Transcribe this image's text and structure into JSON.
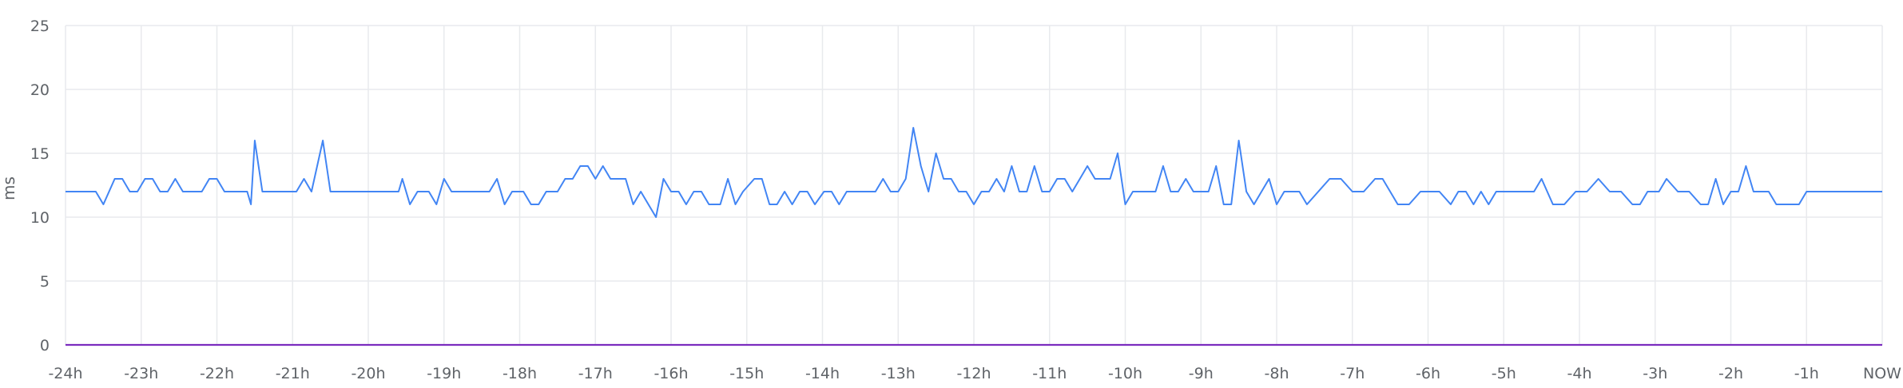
{
  "chart_data": {
    "type": "line",
    "ylabel": "ms",
    "xlabel": "",
    "ylim": [
      0,
      25
    ],
    "xlim": [
      -24,
      0
    ],
    "yticks": [
      "0",
      "5",
      "10",
      "15",
      "20",
      "25"
    ],
    "xticks": [
      {
        "label": "-24h",
        "value": -24
      },
      {
        "label": "-23h",
        "value": -23
      },
      {
        "label": "-22h",
        "value": -22
      },
      {
        "label": "-21h",
        "value": -21
      },
      {
        "label": "-20h",
        "value": -20
      },
      {
        "label": "-19h",
        "value": -19
      },
      {
        "label": "-18h",
        "value": -18
      },
      {
        "label": "-17h",
        "value": -17
      },
      {
        "label": "-16h",
        "value": -16
      },
      {
        "label": "-15h",
        "value": -15
      },
      {
        "label": "-14h",
        "value": -14
      },
      {
        "label": "-13h",
        "value": -13
      },
      {
        "label": "-12h",
        "value": -12
      },
      {
        "label": "-11h",
        "value": -11
      },
      {
        "label": "-10h",
        "value": -10
      },
      {
        "label": "-9h",
        "value": -9
      },
      {
        "label": "-8h",
        "value": -8
      },
      {
        "label": "-7h",
        "value": -7
      },
      {
        "label": "-6h",
        "value": -6
      },
      {
        "label": "-5h",
        "value": -5
      },
      {
        "label": "-4h",
        "value": -4
      },
      {
        "label": "-3h",
        "value": -3
      },
      {
        "label": "-2h",
        "value": -2
      },
      {
        "label": "-1h",
        "value": -1
      },
      {
        "label": "NOW",
        "value": 0
      }
    ],
    "grid": true,
    "series": [
      {
        "color": "#4285f4",
        "points": [
          [
            -24.0,
            12
          ],
          [
            -23.6,
            12
          ],
          [
            -23.5,
            11
          ],
          [
            -23.35,
            13
          ],
          [
            -23.25,
            13
          ],
          [
            -23.15,
            12
          ],
          [
            -23.05,
            12
          ],
          [
            -22.95,
            13
          ],
          [
            -22.85,
            13
          ],
          [
            -22.75,
            12
          ],
          [
            -22.65,
            12
          ],
          [
            -22.55,
            13
          ],
          [
            -22.45,
            12
          ],
          [
            -22.3,
            12
          ],
          [
            -22.2,
            12
          ],
          [
            -22.1,
            13
          ],
          [
            -22.0,
            13
          ],
          [
            -21.9,
            12
          ],
          [
            -21.6,
            12
          ],
          [
            -21.55,
            11
          ],
          [
            -21.5,
            16
          ],
          [
            -21.4,
            12
          ],
          [
            -21.1,
            12
          ],
          [
            -20.95,
            12
          ],
          [
            -20.85,
            13
          ],
          [
            -20.75,
            12
          ],
          [
            -20.6,
            16
          ],
          [
            -20.5,
            12
          ],
          [
            -20.1,
            12
          ],
          [
            -19.6,
            12
          ],
          [
            -19.55,
            13
          ],
          [
            -19.45,
            11
          ],
          [
            -19.35,
            12
          ],
          [
            -19.2,
            12
          ],
          [
            -19.1,
            11
          ],
          [
            -19.0,
            13
          ],
          [
            -18.9,
            12
          ],
          [
            -18.4,
            12
          ],
          [
            -18.3,
            13
          ],
          [
            -18.2,
            11
          ],
          [
            -18.1,
            12
          ],
          [
            -17.95,
            12
          ],
          [
            -17.85,
            11
          ],
          [
            -17.75,
            11
          ],
          [
            -17.65,
            12
          ],
          [
            -17.5,
            12
          ],
          [
            -17.4,
            13
          ],
          [
            -17.3,
            13
          ],
          [
            -17.2,
            14
          ],
          [
            -17.1,
            14
          ],
          [
            -17.0,
            13
          ],
          [
            -16.9,
            14
          ],
          [
            -16.8,
            13
          ],
          [
            -16.6,
            13
          ],
          [
            -16.5,
            11
          ],
          [
            -16.4,
            12
          ],
          [
            -16.2,
            10
          ],
          [
            -16.1,
            13
          ],
          [
            -16.0,
            12
          ],
          [
            -15.9,
            12
          ],
          [
            -15.8,
            11
          ],
          [
            -15.7,
            12
          ],
          [
            -15.6,
            12
          ],
          [
            -15.5,
            11
          ],
          [
            -15.35,
            11
          ],
          [
            -15.25,
            13
          ],
          [
            -15.15,
            11
          ],
          [
            -15.05,
            12
          ],
          [
            -14.9,
            13
          ],
          [
            -14.8,
            13
          ],
          [
            -14.7,
            11
          ],
          [
            -14.6,
            11
          ],
          [
            -14.5,
            12
          ],
          [
            -14.4,
            11
          ],
          [
            -14.3,
            12
          ],
          [
            -14.2,
            12
          ],
          [
            -14.1,
            11
          ],
          [
            -13.98,
            12
          ],
          [
            -13.88,
            12
          ],
          [
            -13.78,
            11
          ],
          [
            -13.68,
            12
          ],
          [
            -13.3,
            12
          ],
          [
            -13.2,
            13
          ],
          [
            -13.1,
            12
          ],
          [
            -13.0,
            12
          ],
          [
            -12.9,
            13
          ],
          [
            -12.8,
            17
          ],
          [
            -12.7,
            14
          ],
          [
            -12.6,
            12
          ],
          [
            -12.5,
            15
          ],
          [
            -12.4,
            13
          ],
          [
            -12.3,
            13
          ],
          [
            -12.2,
            12
          ],
          [
            -12.1,
            12
          ],
          [
            -12.0,
            11
          ],
          [
            -11.9,
            12
          ],
          [
            -11.8,
            12
          ],
          [
            -11.7,
            13
          ],
          [
            -11.6,
            12
          ],
          [
            -11.5,
            14
          ],
          [
            -11.4,
            12
          ],
          [
            -11.3,
            12
          ],
          [
            -11.2,
            14
          ],
          [
            -11.1,
            12
          ],
          [
            -11.0,
            12
          ],
          [
            -10.9,
            13
          ],
          [
            -10.8,
            13
          ],
          [
            -10.7,
            12
          ],
          [
            -10.6,
            13
          ],
          [
            -10.5,
            14
          ],
          [
            -10.4,
            13
          ],
          [
            -10.3,
            13
          ],
          [
            -10.2,
            13
          ],
          [
            -10.1,
            15
          ],
          [
            -10.0,
            11
          ],
          [
            -9.9,
            12
          ],
          [
            -9.6,
            12
          ],
          [
            -9.5,
            14
          ],
          [
            -9.4,
            12
          ],
          [
            -9.3,
            12
          ],
          [
            -9.2,
            13
          ],
          [
            -9.1,
            12
          ],
          [
            -8.9,
            12
          ],
          [
            -8.8,
            14
          ],
          [
            -8.7,
            11
          ],
          [
            -8.6,
            11
          ],
          [
            -8.5,
            16
          ],
          [
            -8.4,
            12
          ],
          [
            -8.3,
            11
          ],
          [
            -8.1,
            13
          ],
          [
            -8.0,
            11
          ],
          [
            -7.9,
            12
          ],
          [
            -7.7,
            12
          ],
          [
            -7.6,
            11
          ],
          [
            -7.45,
            12
          ],
          [
            -7.3,
            13
          ],
          [
            -7.15,
            13
          ],
          [
            -7.0,
            12
          ],
          [
            -6.85,
            12
          ],
          [
            -6.7,
            13
          ],
          [
            -6.6,
            13
          ],
          [
            -6.5,
            12
          ],
          [
            -6.4,
            11
          ],
          [
            -6.25,
            11
          ],
          [
            -6.1,
            12
          ],
          [
            -5.85,
            12
          ],
          [
            -5.7,
            11
          ],
          [
            -5.6,
            12
          ],
          [
            -5.5,
            12
          ],
          [
            -5.4,
            11
          ],
          [
            -5.3,
            12
          ],
          [
            -5.2,
            11
          ],
          [
            -5.1,
            12
          ],
          [
            -4.6,
            12
          ],
          [
            -4.5,
            13
          ],
          [
            -4.35,
            11
          ],
          [
            -4.2,
            11
          ],
          [
            -4.05,
            12
          ],
          [
            -3.9,
            12
          ],
          [
            -3.75,
            13
          ],
          [
            -3.6,
            12
          ],
          [
            -3.45,
            12
          ],
          [
            -3.3,
            11
          ],
          [
            -3.2,
            11
          ],
          [
            -3.1,
            12
          ],
          [
            -2.95,
            12
          ],
          [
            -2.85,
            13
          ],
          [
            -2.7,
            12
          ],
          [
            -2.55,
            12
          ],
          [
            -2.4,
            11
          ],
          [
            -2.3,
            11
          ],
          [
            -2.2,
            13
          ],
          [
            -2.1,
            11
          ],
          [
            -2.0,
            12
          ],
          [
            -1.9,
            12
          ],
          [
            -1.8,
            14
          ],
          [
            -1.7,
            12
          ],
          [
            -1.5,
            12
          ],
          [
            -1.4,
            11
          ],
          [
            -1.1,
            11
          ],
          [
            -1.0,
            12
          ],
          [
            -0.1,
            12
          ],
          [
            0.0,
            12
          ]
        ]
      },
      {
        "color": "#7b2cbf",
        "points": [
          [
            -24.0,
            0
          ],
          [
            0.0,
            0
          ]
        ]
      }
    ]
  }
}
